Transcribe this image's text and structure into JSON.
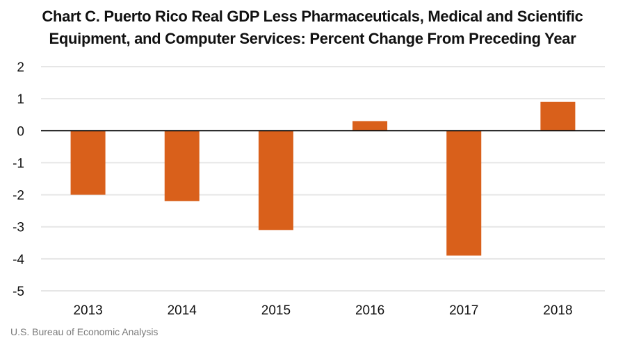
{
  "chart_data": {
    "type": "bar",
    "title_lines": [
      "Chart C. Puerto Rico Real GDP Less Pharmaceuticals, Medical and Scientific",
      "Equipment, and Computer Services: Percent Change From Preceding Year"
    ],
    "title": "Chart C. Puerto Rico Real GDP Less Pharmaceuticals, Medical and Scientific Equipment, and Computer Services: Percent Change From Preceding Year",
    "xlabel": "",
    "ylabel": "",
    "categories": [
      "2013",
      "2014",
      "2015",
      "2016",
      "2017",
      "2018"
    ],
    "values": [
      -2.0,
      -2.2,
      -3.1,
      0.3,
      -3.9,
      0.9
    ],
    "ylim": [
      -5,
      2
    ],
    "yticks": [
      2,
      1,
      0,
      -1,
      -2,
      -3,
      -4,
      -5
    ],
    "grid": true,
    "legend": "none",
    "bar_color": "#D9601B",
    "source": "U.S. Bureau of Economic Analysis"
  }
}
